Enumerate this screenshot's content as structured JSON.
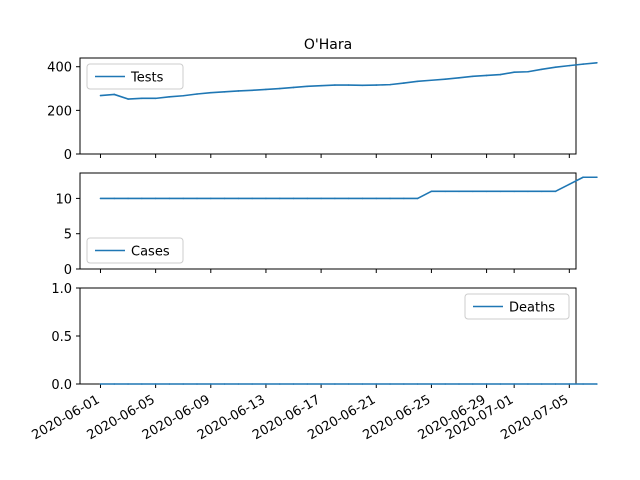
{
  "title": "O'Hara",
  "colors": {
    "series": "#1f77b4",
    "axis": "#000000",
    "legend_border": "#cccccc"
  },
  "chart_data": [
    {
      "type": "line",
      "series": [
        {
          "name": "Tests",
          "values": [
            268,
            273,
            252,
            255,
            255,
            262,
            267,
            275,
            281,
            285,
            289,
            292,
            296,
            300,
            305,
            310,
            313,
            316,
            316,
            315,
            316,
            318,
            325,
            333,
            338,
            343,
            349,
            356,
            360,
            364,
            375,
            377,
            388,
            398,
            405,
            412,
            418
          ]
        }
      ],
      "ylim": [
        0,
        440
      ],
      "yticks": [
        "0",
        "200",
        "400"
      ],
      "ytick_values": [
        0,
        200,
        400
      ],
      "legend": "upper-left",
      "grid": false
    },
    {
      "type": "line",
      "series": [
        {
          "name": "Cases",
          "values": [
            10,
            10,
            10,
            10,
            10,
            10,
            10,
            10,
            10,
            10,
            10,
            10,
            10,
            10,
            10,
            10,
            10,
            10,
            10,
            10,
            10,
            10,
            10,
            10,
            11,
            11,
            11,
            11,
            11,
            11,
            11,
            11,
            11,
            11,
            12,
            13,
            13
          ]
        }
      ],
      "ylim": [
        0,
        13.6
      ],
      "yticks": [
        "0",
        "5",
        "10"
      ],
      "ytick_values": [
        0,
        5,
        10
      ],
      "legend": "lower-left",
      "grid": false
    },
    {
      "type": "line",
      "series": [
        {
          "name": "Deaths",
          "values": [
            0,
            0,
            0,
            0,
            0,
            0,
            0,
            0,
            0,
            0,
            0,
            0,
            0,
            0,
            0,
            0,
            0,
            0,
            0,
            0,
            0,
            0,
            0,
            0,
            0,
            0,
            0,
            0,
            0,
            0,
            0,
            0,
            0,
            0,
            0,
            0,
            0
          ]
        }
      ],
      "ylim": [
        0,
        1
      ],
      "yticks": [
        "0.0",
        "0.5",
        "1.0"
      ],
      "ytick_values": [
        0,
        0.5,
        1
      ],
      "legend": "upper-right",
      "grid": false
    }
  ],
  "x_axis": {
    "start": "2020-06-01",
    "end": "2020-07-04",
    "ticks": [
      "2020-06-01",
      "2020-06-05",
      "2020-06-09",
      "2020-06-13",
      "2020-06-17",
      "2020-06-21",
      "2020-06-25",
      "2020-06-29",
      "2020-07-01",
      "2020-07-05"
    ]
  }
}
